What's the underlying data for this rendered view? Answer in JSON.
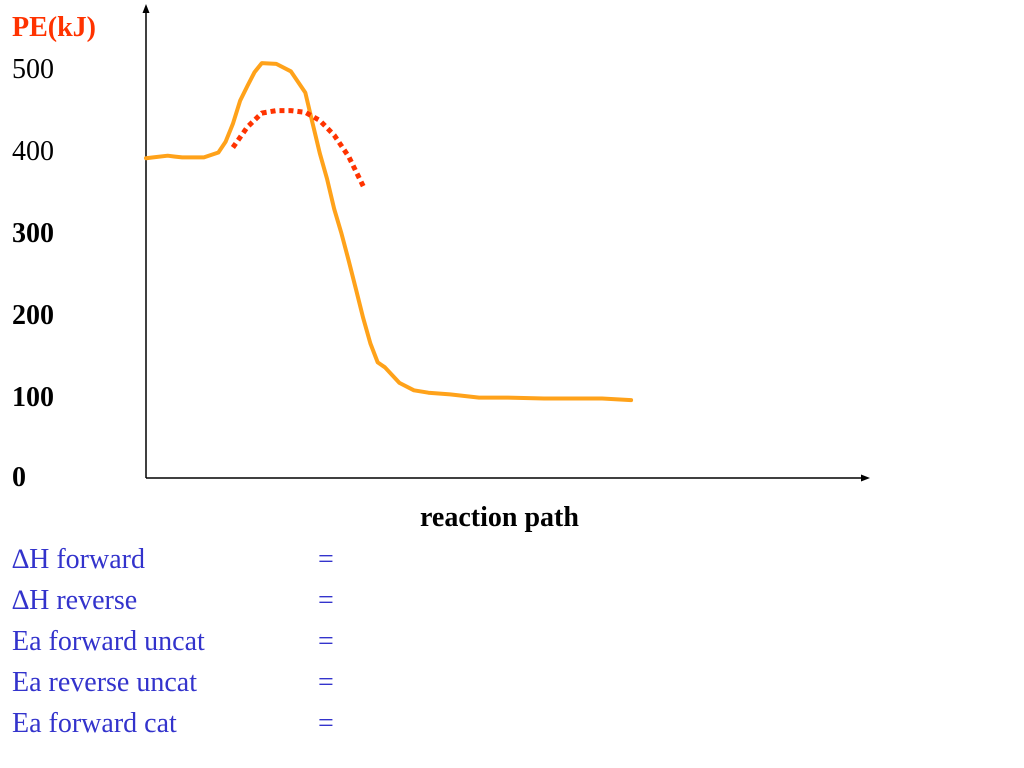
{
  "colors": {
    "ylabel": "#ff3300",
    "uncatalyzed": "#ffa21a",
    "catalyzed": "#ff3300",
    "questions": "#3333cc",
    "axes": "#000000"
  },
  "chart_data": {
    "type": "line",
    "ylabel": "PE(kJ)",
    "xlabel": "reaction path",
    "yticks": [
      {
        "label": "500",
        "value": 500,
        "bold": false
      },
      {
        "label": "400",
        "value": 400,
        "bold": false
      },
      {
        "label": "300",
        "value": 300,
        "bold": true
      },
      {
        "label": "200",
        "value": 200,
        "bold": true
      },
      {
        "label": "100",
        "value": 100,
        "bold": true
      },
      {
        "label": "0",
        "value": 0,
        "bold": true
      }
    ],
    "ylim": [
      0,
      500
    ],
    "xlim": [
      0,
      100
    ],
    "grid": false,
    "series": [
      {
        "style": "solid",
        "x": [
          0,
          1,
          3,
          4,
          5,
          6,
          7,
          8,
          10,
          11,
          12,
          13,
          14,
          15,
          16,
          18,
          20,
          22,
          23,
          24,
          25,
          26,
          27,
          28,
          29,
          30,
          31,
          32,
          33,
          35,
          37,
          39,
          42,
          46,
          50,
          55,
          57,
          60,
          63,
          67
        ],
        "y": [
          390,
          391,
          393,
          392,
          391,
          391,
          391,
          391,
          397,
          410,
          432,
          460,
          478,
          495,
          506,
          505,
          496,
          470,
          433,
          396,
          365,
          328,
          298,
          265,
          230,
          195,
          164,
          141,
          135,
          116,
          107,
          104,
          102,
          98,
          98,
          97,
          97,
          97,
          97,
          95
        ]
      },
      {
        "style": "dotted",
        "x": [
          12,
          14,
          16,
          18,
          20,
          22,
          24,
          26,
          28,
          30
        ],
        "y": [
          403,
          428,
          445,
          448,
          448,
          446,
          436,
          418,
          392,
          356
        ]
      }
    ]
  },
  "questions": [
    {
      "label": "∆H forward",
      "eq": "="
    },
    {
      "label": "∆H reverse",
      "eq": "="
    },
    {
      "label": "Ea forward uncat",
      "eq": "="
    },
    {
      "label": "Ea reverse uncat",
      "eq": "="
    },
    {
      "label": "Ea forward cat",
      "eq": "="
    }
  ]
}
